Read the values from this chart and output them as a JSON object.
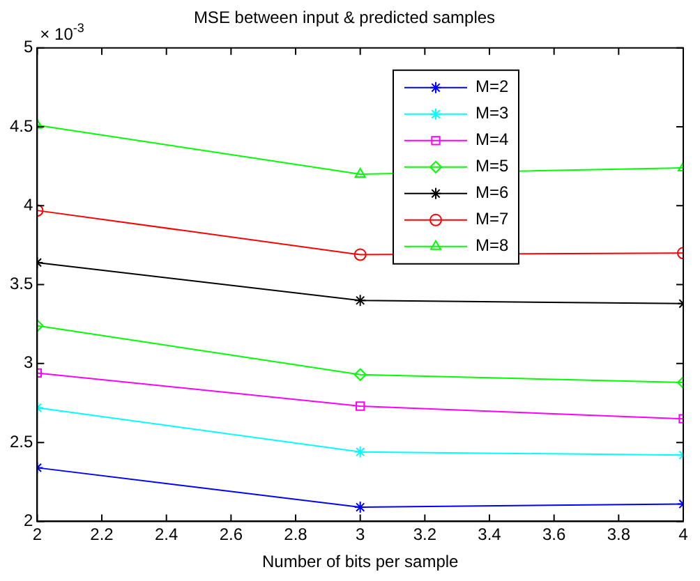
{
  "chart_data": {
    "type": "line",
    "title": "MSE between input & predicted samples",
    "xlabel": "Number of bits per sample",
    "annotations": [
      "× 10$^{-3}$"
    ],
    "x": [
      2,
      3,
      4
    ],
    "series": [
      {
        "name": "M=2",
        "color": "#0000ff",
        "marker": "cross",
        "values": [
          2.34,
          2.09,
          2.11
        ]
      },
      {
        "name": "M=3",
        "color": "#00ffff",
        "marker": "cross",
        "values": [
          2.72,
          2.44,
          2.42
        ]
      },
      {
        "name": "M=4",
        "color": "#ff00ff",
        "marker": "square",
        "values": [
          2.94,
          2.73,
          2.65
        ]
      },
      {
        "name": "M=5",
        "color": "#00ff00",
        "marker": "diamond",
        "values": [
          3.24,
          2.93,
          2.88
        ]
      },
      {
        "name": "M=6",
        "color": "#000000",
        "marker": "cross",
        "values": [
          3.64,
          3.4,
          3.38
        ]
      },
      {
        "name": "M=7",
        "color": "#ff0000",
        "marker": "circle",
        "values": [
          3.97,
          3.69,
          3.7
        ]
      },
      {
        "name": "M=8",
        "color": "#00ff00",
        "marker": "triangle",
        "values": [
          4.51,
          4.2,
          4.24
        ]
      }
    ],
    "xlim": [
      2,
      4
    ],
    "xticks": [
      2,
      2.2,
      2.4,
      2.6,
      2.8,
      3,
      3.2,
      3.4,
      3.6,
      3.8,
      4
    ],
    "ylim": [
      2,
      5
    ],
    "yticks": [
      2,
      2.5,
      3,
      3.5,
      4,
      4.5,
      5
    ],
    "grid": false,
    "legend": "top right",
    "line_style": "solid"
  }
}
